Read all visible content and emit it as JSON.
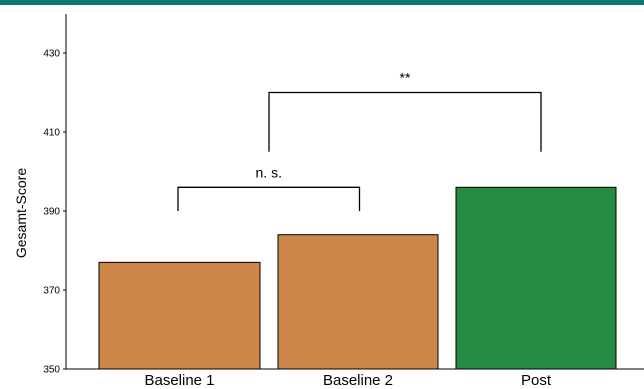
{
  "colors": {
    "top_stripe": "#0b7a6d",
    "baseline_bar": "#cc8649",
    "post_bar": "#278c43",
    "bar_outline": "#000000"
  },
  "chart_data": {
    "type": "bar",
    "title": "",
    "xlabel": "",
    "ylabel": "Gesamt-Score",
    "categories": [
      "Baseline 1",
      "Baseline 2",
      "Post"
    ],
    "values": [
      377,
      384,
      396
    ],
    "bar_colors": [
      "#cc8649",
      "#cc8649",
      "#278c43"
    ],
    "ylim": [
      350,
      440
    ],
    "yticks": [
      350,
      370,
      390,
      410,
      430
    ],
    "ytick_labels": [
      "350",
      "370",
      "390",
      "410",
      "430"
    ],
    "grid": false,
    "legend": "none",
    "annotations": [
      {
        "type": "bracket",
        "from": "Baseline 1",
        "to": "Baseline 2",
        "y_top": 396,
        "y_end": 390,
        "label": "n. s."
      },
      {
        "type": "bracket",
        "from": "Baseline 1|Baseline 2",
        "to": "Post",
        "y_top": 420,
        "y_end": 405,
        "label": "**"
      }
    ]
  }
}
